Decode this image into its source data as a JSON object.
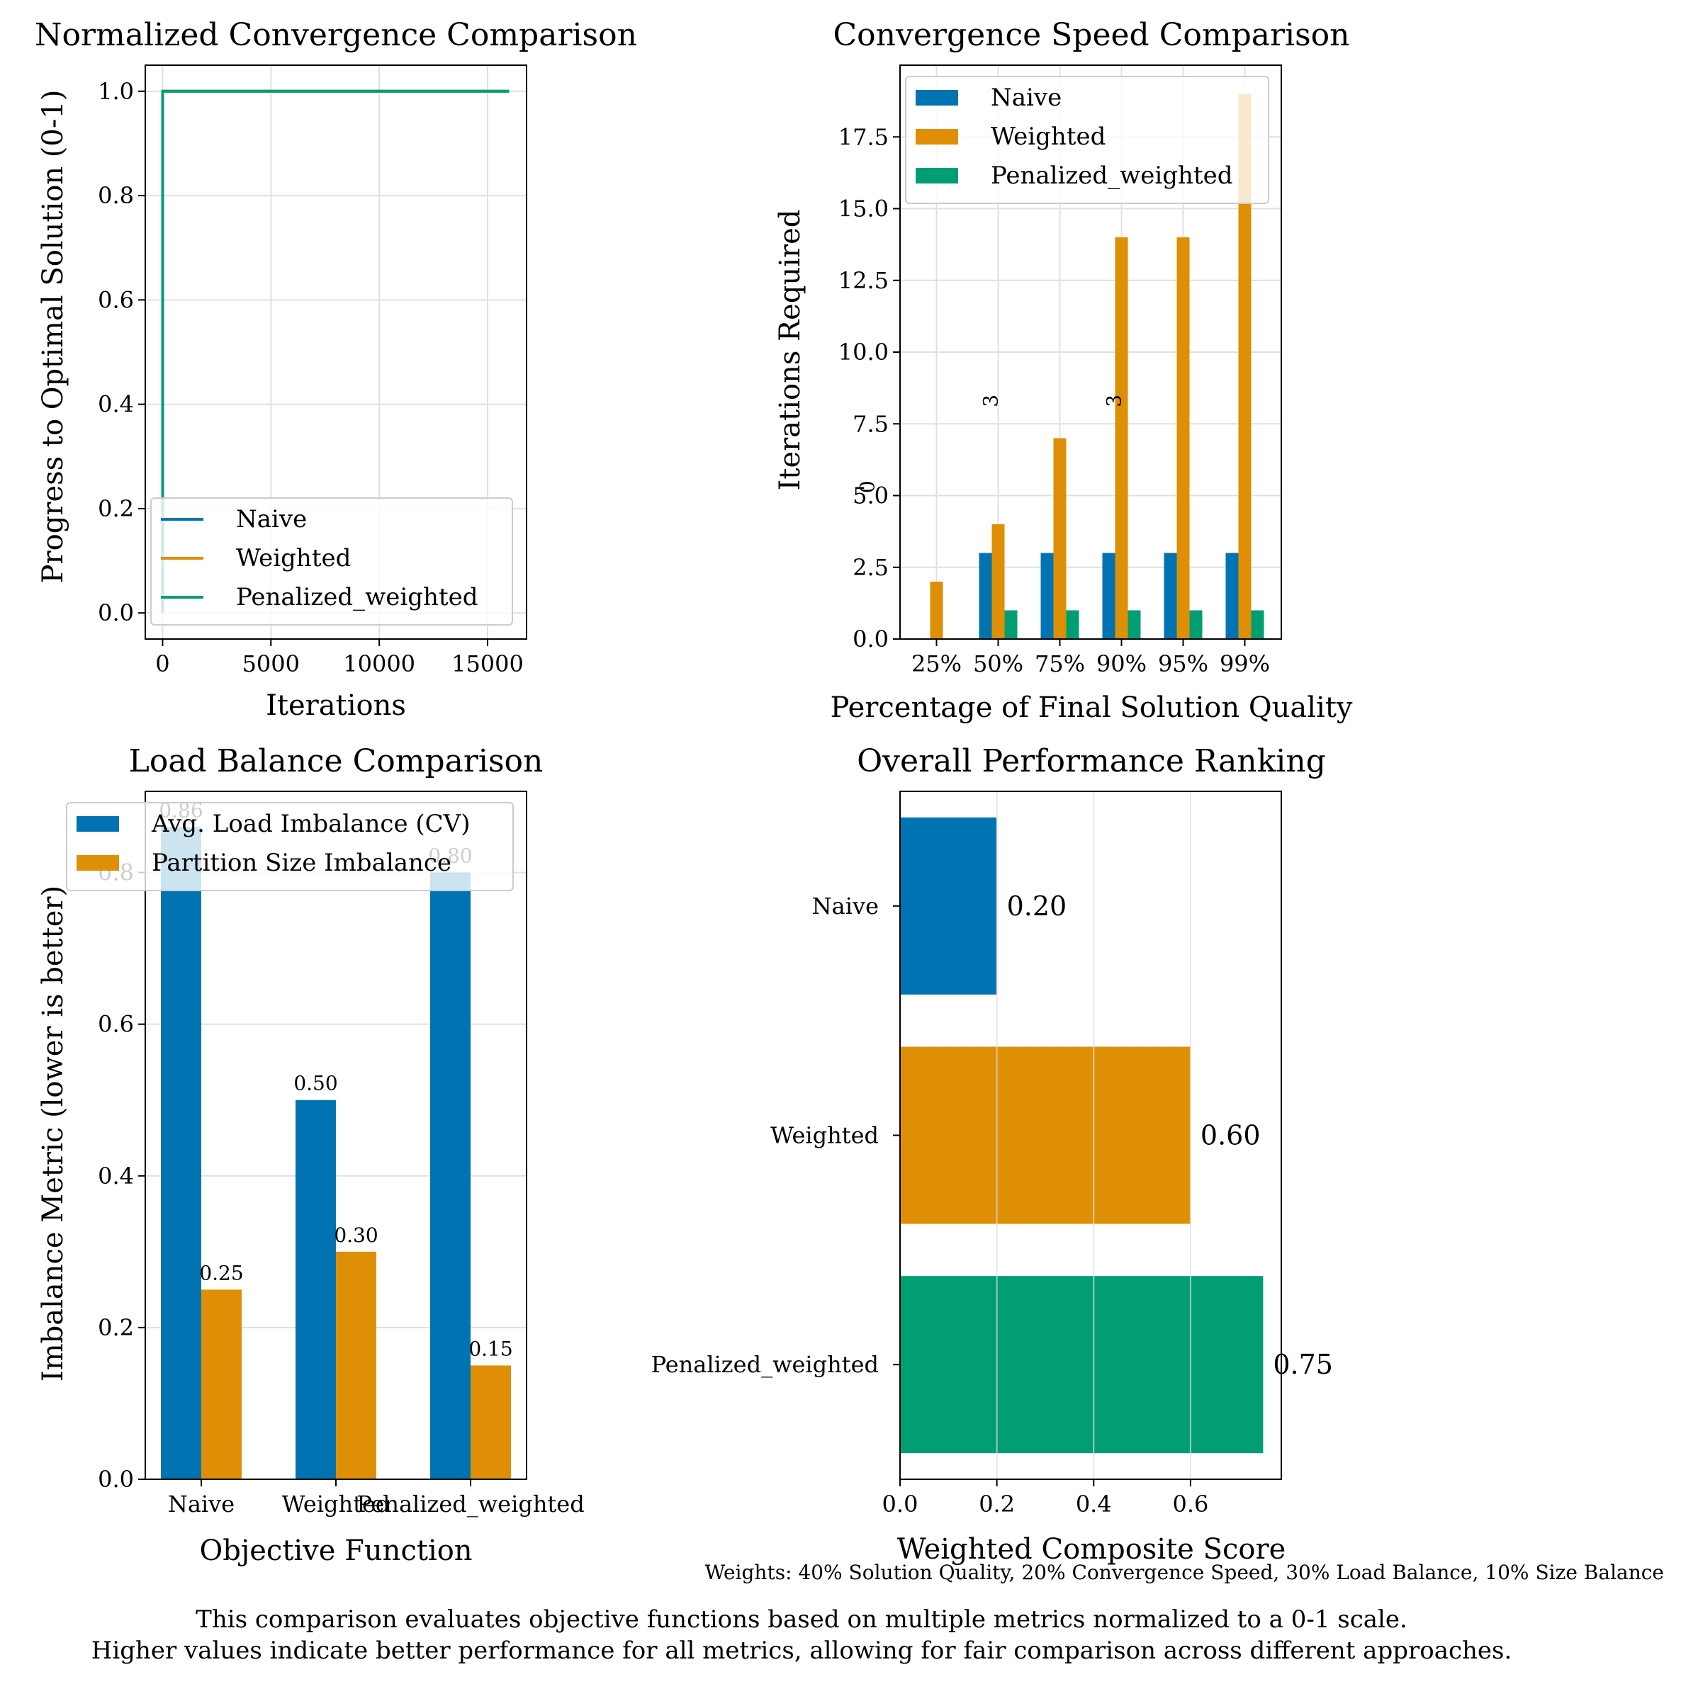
{
  "colors": {
    "naive": "#0173b2",
    "weighted": "#de8f05",
    "penalized": "#029e73",
    "grid": "#e0e0e0"
  },
  "chart_data": [
    {
      "type": "line",
      "title": "Normalized Convergence Comparison",
      "xlabel": "Iterations",
      "ylabel": "Progress to Optimal Solution (0-1)",
      "xlim": [
        -800,
        16800
      ],
      "ylim": [
        -0.05,
        1.05
      ],
      "xticks": [
        0,
        5000,
        10000,
        15000
      ],
      "yticks": [
        0.0,
        0.2,
        0.4,
        0.6,
        0.8,
        1.0
      ],
      "grid": true,
      "legend": "lower-right",
      "series": [
        {
          "name": "Naive",
          "color": "#0173b2",
          "points": [
            [
              0,
              0.0
            ],
            [
              0,
              1.0
            ],
            [
              16000,
              1.0
            ]
          ]
        },
        {
          "name": "Weighted",
          "color": "#de8f05",
          "points": [
            [
              0,
              0.0
            ],
            [
              0,
              1.0
            ],
            [
              16000,
              1.0
            ]
          ]
        },
        {
          "name": "Penalized_weighted",
          "color": "#029e73",
          "points": [
            [
              0,
              0.0
            ],
            [
              0,
              1.0
            ],
            [
              16000,
              1.0
            ]
          ]
        }
      ]
    },
    {
      "type": "bar",
      "title": "Convergence Speed Comparison",
      "xlabel": "Percentage of Final Solution Quality",
      "ylabel": "Iterations Required",
      "categories": [
        "25%",
        "50%",
        "75%",
        "90%",
        "95%",
        "99%"
      ],
      "ylim": [
        0,
        20
      ],
      "yticks": [
        0.0,
        2.5,
        5.0,
        7.5,
        10.0,
        12.5,
        15.0,
        17.5
      ],
      "grid": true,
      "legend": "top-left",
      "series": [
        {
          "name": "Naive",
          "color": "#0173b2",
          "values": [
            0,
            3,
            3,
            3,
            3,
            3
          ]
        },
        {
          "name": "Weighted",
          "color": "#de8f05",
          "values": [
            2,
            4,
            7,
            14,
            14,
            19
          ]
        },
        {
          "name": "Penalized_weighted",
          "color": "#029e73",
          "values": [
            0,
            1,
            1,
            1,
            1,
            1
          ]
        }
      ],
      "annotations": [
        {
          "text": "0",
          "category": "25%",
          "y": 5.3
        },
        {
          "text": "3",
          "category": "75%",
          "y": 8.3
        },
        {
          "text": "3",
          "category": "95%",
          "y": 8.3
        }
      ]
    },
    {
      "type": "bar",
      "title": "Load Balance Comparison",
      "xlabel": "Objective Function",
      "ylabel": "Imbalance Metric (lower is better)",
      "categories": [
        "Naive",
        "Weighted",
        "Penalized_weighted"
      ],
      "ylim": [
        0,
        0.907
      ],
      "yticks": [
        0.0,
        0.2,
        0.4,
        0.6,
        0.8
      ],
      "grid": true,
      "legend": "top-left",
      "series": [
        {
          "name": "Avg. Load Imbalance (CV)",
          "color": "#0173b2",
          "values": [
            0.86,
            0.5,
            0.8
          ],
          "labels": [
            "0.86",
            "0.50",
            "0.80"
          ]
        },
        {
          "name": "Partition Size Imbalance",
          "color": "#de8f05",
          "values": [
            0.25,
            0.3,
            0.15
          ],
          "labels": [
            "0.25",
            "0.30",
            "0.15"
          ]
        }
      ]
    },
    {
      "type": "bar",
      "orientation": "horizontal",
      "title": "Overall Performance Ranking",
      "xlabel": "Weighted Composite Score",
      "categories": [
        "Naive",
        "Weighted",
        "Penalized_weighted"
      ],
      "values": [
        0.2,
        0.6,
        0.75
      ],
      "labels": [
        "0.20",
        "0.60",
        "0.75"
      ],
      "colors": [
        "#0173b2",
        "#de8f05",
        "#029e73"
      ],
      "xlim": [
        0,
        0.7875
      ],
      "xticks": [
        0.0,
        0.2,
        0.4,
        0.6
      ],
      "grid": true
    }
  ],
  "notes": {
    "weights": "Weights: 40% Solution Quality, 20% Convergence Speed, 30% Load Balance, 10% Size Balance",
    "caption_line1": "This comparison evaluates objective functions based on multiple metrics normalized to a 0-1 scale.",
    "caption_line2": "Higher values indicate better performance for all metrics, allowing for fair comparison across different approaches."
  }
}
